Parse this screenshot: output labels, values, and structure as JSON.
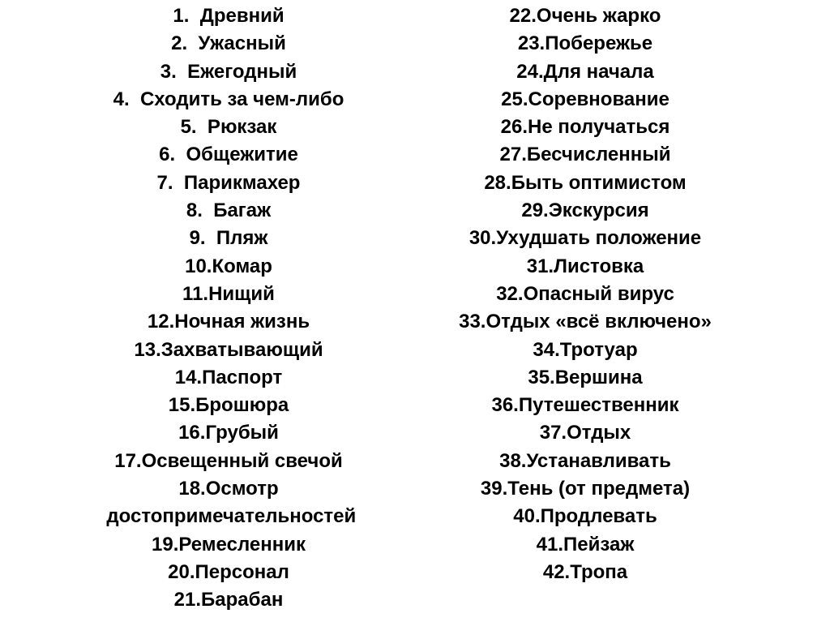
{
  "slide": {
    "text_color": "#000000",
    "background": "#ffffff",
    "left_column": [
      {
        "text": "1.  Древний"
      },
      {
        "text": "2.  Ужасный"
      },
      {
        "text": "3.  Ежегодный"
      },
      {
        "text": "4.  Сходить за чем-либо"
      },
      {
        "text": "5.  Рюкзак"
      },
      {
        "text": "6.  Общежитие"
      },
      {
        "text": "7.  Парикмахер"
      },
      {
        "text": "8.  Багаж"
      },
      {
        "text": "9.  Пляж"
      },
      {
        "text": "10.Комар"
      },
      {
        "text": "11.Нищий"
      },
      {
        "text": "12.Ночная жизнь"
      },
      {
        "text": "13.Захватывающий"
      },
      {
        "text": "14.Паспорт"
      },
      {
        "text": "15.Брошюра"
      },
      {
        "text": "16.Грубый"
      },
      {
        "text": "17.Освещенный свечой"
      },
      {
        "text": "18.Осмотр",
        "continuation": " достопримечательностей"
      },
      {
        "text": "19.Ремесленник"
      },
      {
        "text": "20.Персонал"
      },
      {
        "text": "21.Барабан"
      }
    ],
    "right_column": [
      {
        "text": "22.Очень жарко"
      },
      {
        "text": "23.Побережье"
      },
      {
        "text": "24.Для начала"
      },
      {
        "text": "25.Соревнование"
      },
      {
        "text": "26.Не получаться"
      },
      {
        "text": "27.Бесчисленный"
      },
      {
        "text": "28.Быть оптимистом"
      },
      {
        "text": "29.Экскурсия"
      },
      {
        "text": "30.Ухудшать положение"
      },
      {
        "text": "31.Листовка"
      },
      {
        "text": "32.Опасный вирус"
      },
      {
        "text": "33.Отдых «всё включено»"
      },
      {
        "text": "34.Тротуар"
      },
      {
        "text": "35.Вершина"
      },
      {
        "text": "36.Путешественник"
      },
      {
        "text": "37.Отдых"
      },
      {
        "text": "38.Устанавливать"
      },
      {
        "text": "39.Тень (от предмета)"
      },
      {
        "text": "40.Продлевать"
      },
      {
        "text": "41.Пейзаж"
      },
      {
        "text": "42.Тропа"
      }
    ]
  }
}
